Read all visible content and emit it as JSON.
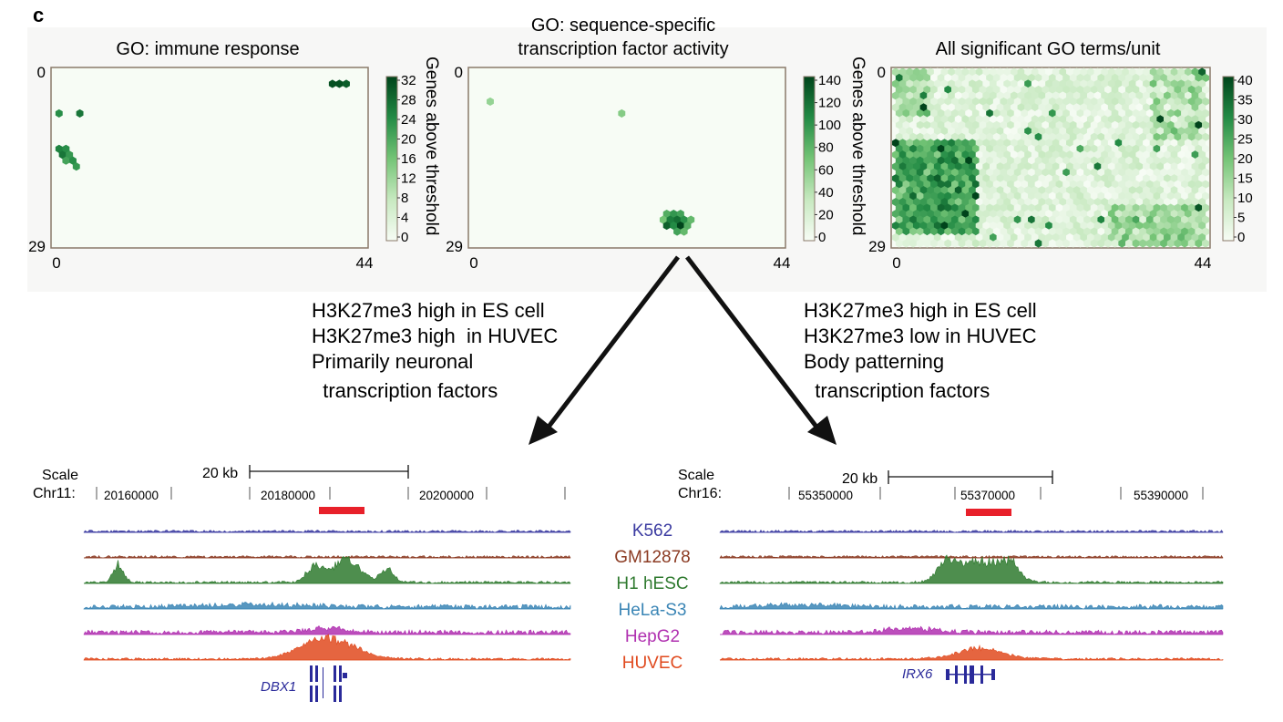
{
  "panel_letter": "c",
  "heatmaps": [
    {
      "title": "GO: immune response",
      "title_lines": [
        "GO: immune response"
      ],
      "y_min_label": "0",
      "y_max_label": "29",
      "x_min_label": "0",
      "x_max_label": "44",
      "colorbar_label": "Genes above threshold",
      "colorbar_ticks": [
        "32",
        "28",
        "24",
        "20",
        "16",
        "12",
        "8",
        "4",
        "0"
      ],
      "vmax": 34,
      "cells": [
        [
          40,
          2,
          32
        ],
        [
          41,
          2,
          32
        ],
        [
          42,
          2,
          30
        ],
        [
          0,
          7,
          22
        ],
        [
          3,
          7,
          26
        ],
        [
          0,
          13,
          24
        ],
        [
          1,
          13,
          22
        ],
        [
          1,
          14,
          26
        ],
        [
          2,
          14,
          20
        ],
        [
          1,
          15,
          18
        ],
        [
          2,
          15,
          22
        ],
        [
          3,
          16,
          20
        ]
      ]
    },
    {
      "title": "GO: sequence-specific transcription factor activity",
      "title_lines": [
        "GO: sequence-specific",
        "transcription factor activity"
      ],
      "y_min_label": "0",
      "y_max_label": "29",
      "x_min_label": "0",
      "x_max_label": "44",
      "colorbar_label": "Genes above threshold",
      "colorbar_ticks": [
        "140",
        "120",
        "100",
        "80",
        "60",
        "40",
        "20",
        "0"
      ],
      "vmax": 150,
      "cells": [
        [
          2,
          5,
          30
        ],
        [
          21,
          7,
          40
        ],
        [
          28,
          24,
          70
        ],
        [
          29,
          24,
          90
        ],
        [
          30,
          24,
          80
        ],
        [
          27,
          25,
          50
        ],
        [
          28,
          25,
          110
        ],
        [
          29,
          25,
          120
        ],
        [
          30,
          25,
          95
        ],
        [
          31,
          25,
          60
        ],
        [
          28,
          26,
          130
        ],
        [
          29,
          26,
          100
        ],
        [
          30,
          26,
          150
        ],
        [
          31,
          26,
          70
        ],
        [
          29,
          27,
          80
        ],
        [
          30,
          27,
          60
        ]
      ]
    },
    {
      "title": "All significant GO terms/unit",
      "title_lines": [
        "All significant GO terms/unit"
      ],
      "y_min_label": "0",
      "y_max_label": "29",
      "x_min_label": "0",
      "x_max_label": "44",
      "colorbar_label": "",
      "colorbar_ticks": [
        "40",
        "35",
        "30",
        "25",
        "20",
        "15",
        "10",
        "5",
        "0"
      ],
      "vmax": 43,
      "cells": []
    }
  ],
  "arrow_texts": {
    "left": [
      "H3K27me3 high in ES cell",
      "H3K27me3 high  in HUVEC",
      "Primarily neuronal",
      "  transcription factors"
    ],
    "right": [
      "H3K27me3 high in ES cell",
      "H3K27me3 low in HUVEC",
      "Body patterning",
      "  transcription factors"
    ]
  },
  "browsers": [
    {
      "scale_label": "Scale",
      "chrom_label": "Chr11:",
      "scalebar_label": "20 kb",
      "positions": [
        "20160000",
        "20180000",
        "20200000"
      ],
      "gene": "DBX1"
    },
    {
      "scale_label": "Scale",
      "chrom_label": "Chr16:",
      "scalebar_label": "20 kb",
      "positions": [
        "55350000",
        "55370000",
        "55390000"
      ],
      "gene": "IRX6"
    }
  ],
  "tracks": [
    {
      "name": "K562",
      "color": "#3a3aa0"
    },
    {
      "name": "GM12878",
      "color": "#8b3a22"
    },
    {
      "name": "H1 hESC",
      "color": "#2f7a2f"
    },
    {
      "name": "HeLa-S3",
      "color": "#3a85b5"
    },
    {
      "name": "HepG2",
      "color": "#b030b0"
    },
    {
      "name": "HUVEC",
      "color": "#e04a1e"
    }
  ],
  "highlight_color": "#e8202a",
  "gene_color": "#2a2a9a"
}
